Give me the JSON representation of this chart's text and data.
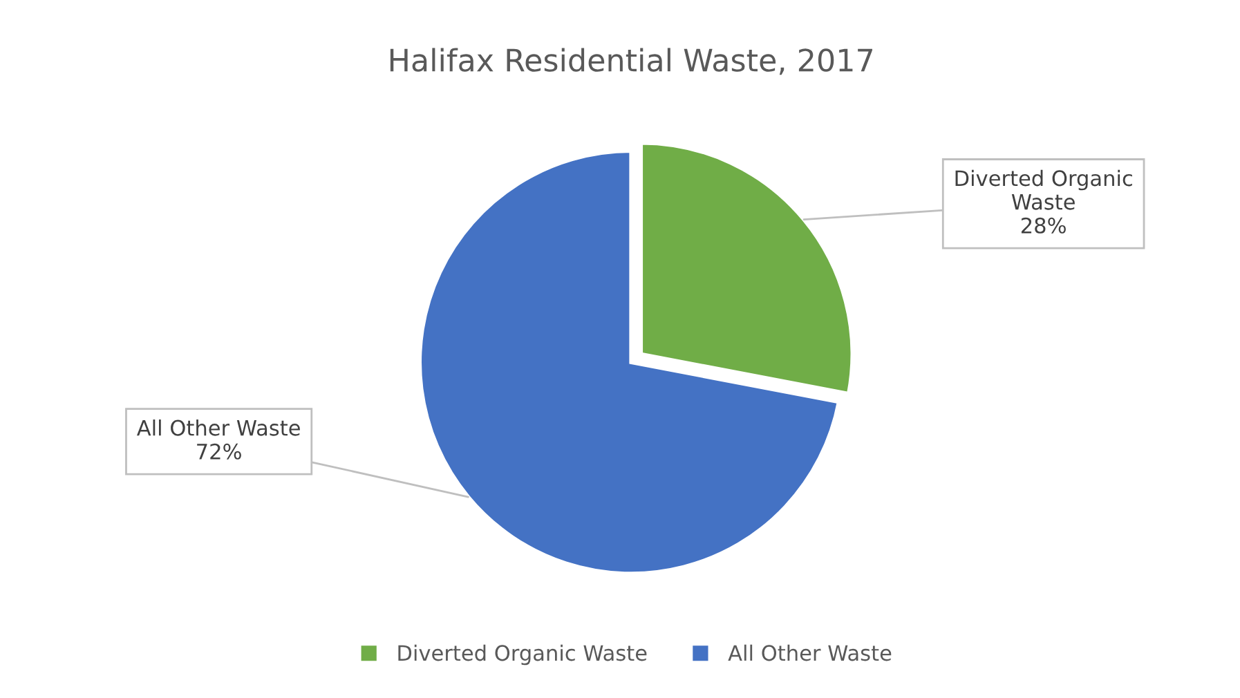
{
  "chart_data": {
    "type": "pie",
    "title": "Halifax Residential Waste, 2017",
    "categories": [
      "Diverted Organic Waste",
      "All Other Waste"
    ],
    "values": [
      28,
      72
    ],
    "colors": [
      "#70ad47",
      "#4472c4"
    ],
    "value_labels": [
      "28%",
      "72%"
    ],
    "legend": "bottom"
  }
}
